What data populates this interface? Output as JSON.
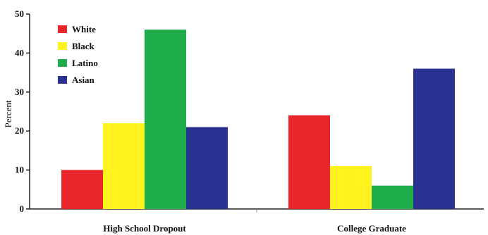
{
  "chart_data": {
    "type": "bar",
    "categories": [
      "High School Dropout",
      "College Graduate"
    ],
    "series": [
      {
        "name": "White",
        "color": "#e8262a",
        "values": [
          10,
          24
        ]
      },
      {
        "name": "Black",
        "color": "#fff21e",
        "values": [
          22,
          11
        ]
      },
      {
        "name": "Latino",
        "color": "#1fac4b",
        "values": [
          46,
          6
        ]
      },
      {
        "name": "Asian",
        "color": "#2b3190",
        "values": [
          21,
          36
        ]
      }
    ],
    "ylabel": "Percent",
    "ylim": [
      0,
      50
    ],
    "yticks": [
      0,
      10,
      20,
      30,
      40,
      50
    ],
    "grid": false,
    "legend": "top-left"
  }
}
